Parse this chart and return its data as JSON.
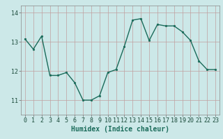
{
  "x": [
    0,
    1,
    2,
    3,
    4,
    5,
    6,
    7,
    8,
    9,
    10,
    11,
    12,
    13,
    14,
    15,
    16,
    17,
    18,
    19,
    20,
    21,
    22,
    23
  ],
  "y": [
    13.1,
    12.75,
    13.2,
    11.85,
    11.85,
    11.95,
    11.6,
    11.0,
    11.0,
    11.15,
    11.95,
    12.05,
    12.85,
    13.75,
    13.8,
    13.05,
    13.6,
    13.55,
    13.55,
    13.35,
    13.05,
    12.35,
    12.05,
    12.05
  ],
  "line_color": "#1a6b5a",
  "marker_color": "#1a6b5a",
  "bg_color": "#cce8e8",
  "grid_color": "#c0a0a0",
  "xlabel": "Humidex (Indice chaleur)",
  "xlim": [
    -0.5,
    23.5
  ],
  "ylim": [
    10.5,
    14.25
  ],
  "yticks": [
    11,
    12,
    13,
    14
  ],
  "xticks": [
    0,
    1,
    2,
    3,
    4,
    5,
    6,
    7,
    8,
    9,
    10,
    11,
    12,
    13,
    14,
    15,
    16,
    17,
    18,
    19,
    20,
    21,
    22,
    23
  ],
  "xlabel_fontsize": 7.0,
  "tick_fontsize": 6.0,
  "marker_size": 2.0,
  "line_width": 1.0
}
